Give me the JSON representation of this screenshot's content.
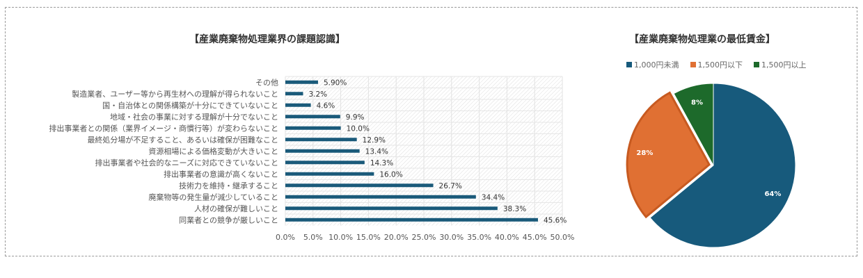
{
  "chart_data": [
    {
      "type": "bar",
      "orientation": "horizontal",
      "title": "【産業廃棄物処理業界の課題認識】",
      "categories": [
        "その他",
        "製造業者、ユーザー等から再生材への理解が得られないこと",
        "国・自治体との関係構築が十分にできていないこと",
        "地域・社会の事業に対する理解が十分でないこと",
        "排出事業者との関係（業界イメージ・商慣行等）が変わらないこと",
        "最終処分場が不足すること、あるいは確保が困難なこと",
        "資源相場による価格変動が大きいこと",
        "排出事業者や社会的なニーズに対応できていないこと",
        "排出事業者の意識が高くないこと",
        "技術力を維持・継承すること",
        "廃棄物等の発生量が減少していること",
        "人材の確保が難しいこと",
        "同業者との競争が厳しいこと"
      ],
      "values": [
        5.9,
        3.2,
        4.6,
        9.9,
        10.0,
        12.9,
        13.4,
        14.3,
        16.0,
        26.7,
        34.4,
        38.3,
        45.6
      ],
      "data_labels": [
        "5.90%",
        "3.2%",
        "4.6%",
        "9.9%",
        "10.0%",
        "12.9%",
        "13.4%",
        "14.3%",
        "16.0%",
        "26.7%",
        "34.4%",
        "38.3%",
        "45.6%"
      ],
      "xlim": [
        0,
        50
      ],
      "x_ticks": [
        "0.0%",
        "5.0%",
        "10.0%",
        "15.0%",
        "20.0%",
        "25.0%",
        "30.0%",
        "35.0%",
        "40.0%",
        "45.0%",
        "50.0%"
      ],
      "grid": true,
      "color": "#1a5a7a"
    },
    {
      "type": "pie",
      "title": "【産業廃棄物処理業の最低賃金】",
      "legend_position": "top",
      "slices": [
        {
          "name": "1,000円未満",
          "value": 64,
          "label": "64%",
          "color": "#175a7c"
        },
        {
          "name": "1,500円以下",
          "value": 28,
          "label": "28%",
          "color": "#e07033"
        },
        {
          "name": "1,500円以上",
          "value": 8,
          "label": "8%",
          "color": "#1d6a2b"
        }
      ]
    }
  ]
}
